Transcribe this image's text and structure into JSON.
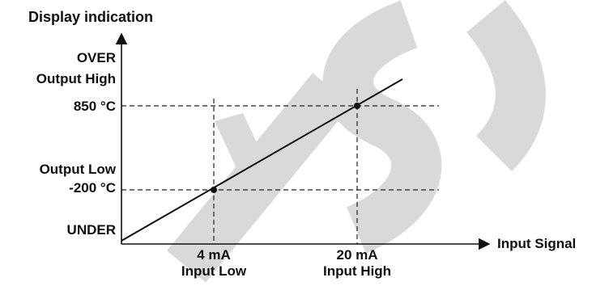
{
  "title": "Display indication",
  "x_axis_label": "Input Signal",
  "y_labels": {
    "over": "OVER",
    "output_high": "Output High",
    "high_value": "850 °C",
    "output_low": "Output Low",
    "low_value": "-200 °C",
    "under": "UNDER"
  },
  "x_labels": {
    "low_value": "4 mA",
    "input_low": "Input Low",
    "high_value": "20 mA",
    "input_high": "Input High"
  },
  "watermark": "ESY",
  "colors": {
    "line": "#111111",
    "watermark": "#d9d9d9"
  }
}
